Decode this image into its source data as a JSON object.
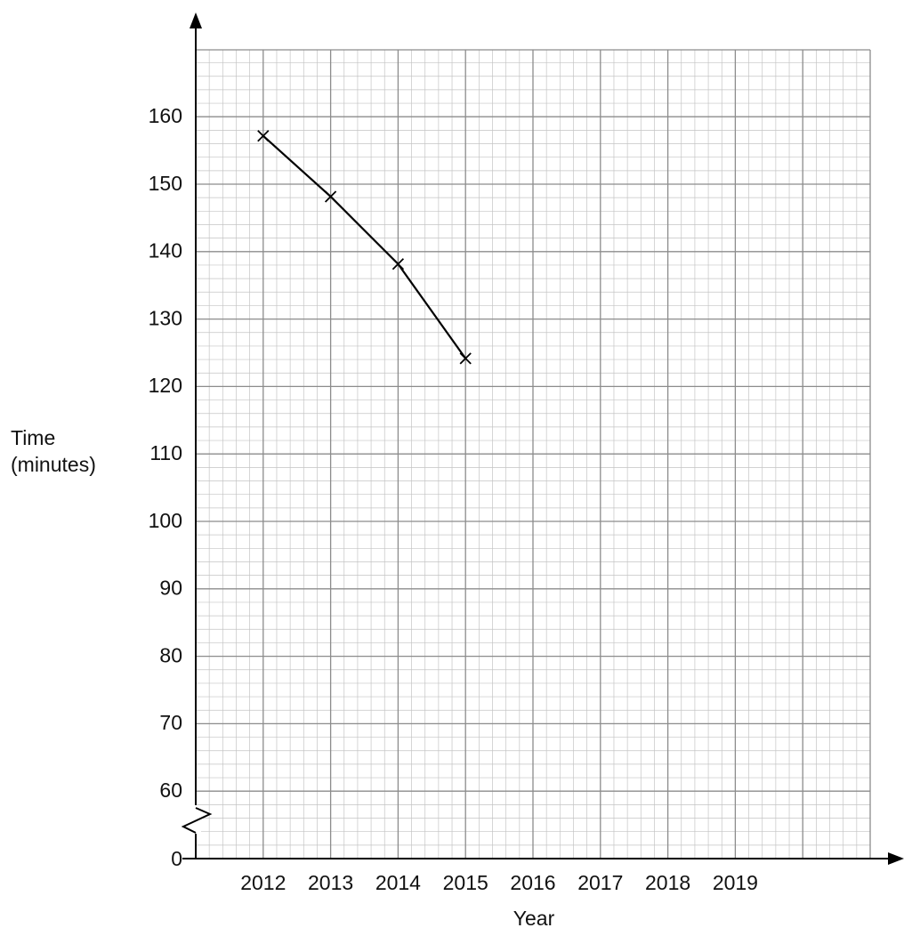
{
  "chart_data": {
    "type": "line",
    "x": [
      2012,
      2013,
      2014,
      2015
    ],
    "y": [
      157,
      148,
      138,
      124
    ],
    "marker": "x",
    "xlabel": "Year",
    "ylabel_lines": [
      "Time",
      "(minutes)"
    ],
    "x_tick_labels": [
      "2012",
      "2013",
      "2014",
      "2015",
      "2016",
      "2017",
      "2018",
      "2019"
    ],
    "y_tick_labels": [
      "0",
      "60",
      "70",
      "80",
      "90",
      "100",
      "110",
      "120",
      "130",
      "140",
      "150",
      "160"
    ],
    "y_tick_values": [
      60,
      70,
      80,
      90,
      100,
      110,
      120,
      130,
      140,
      150,
      160
    ],
    "ylim": [
      57,
      170
    ],
    "xlim": [
      2011,
      2021
    ],
    "y_axis_break": true,
    "grid": true,
    "colors": {
      "line": "#000000",
      "major_grid": "#8c8c8c",
      "minor_grid": "#c4c4c4"
    }
  }
}
